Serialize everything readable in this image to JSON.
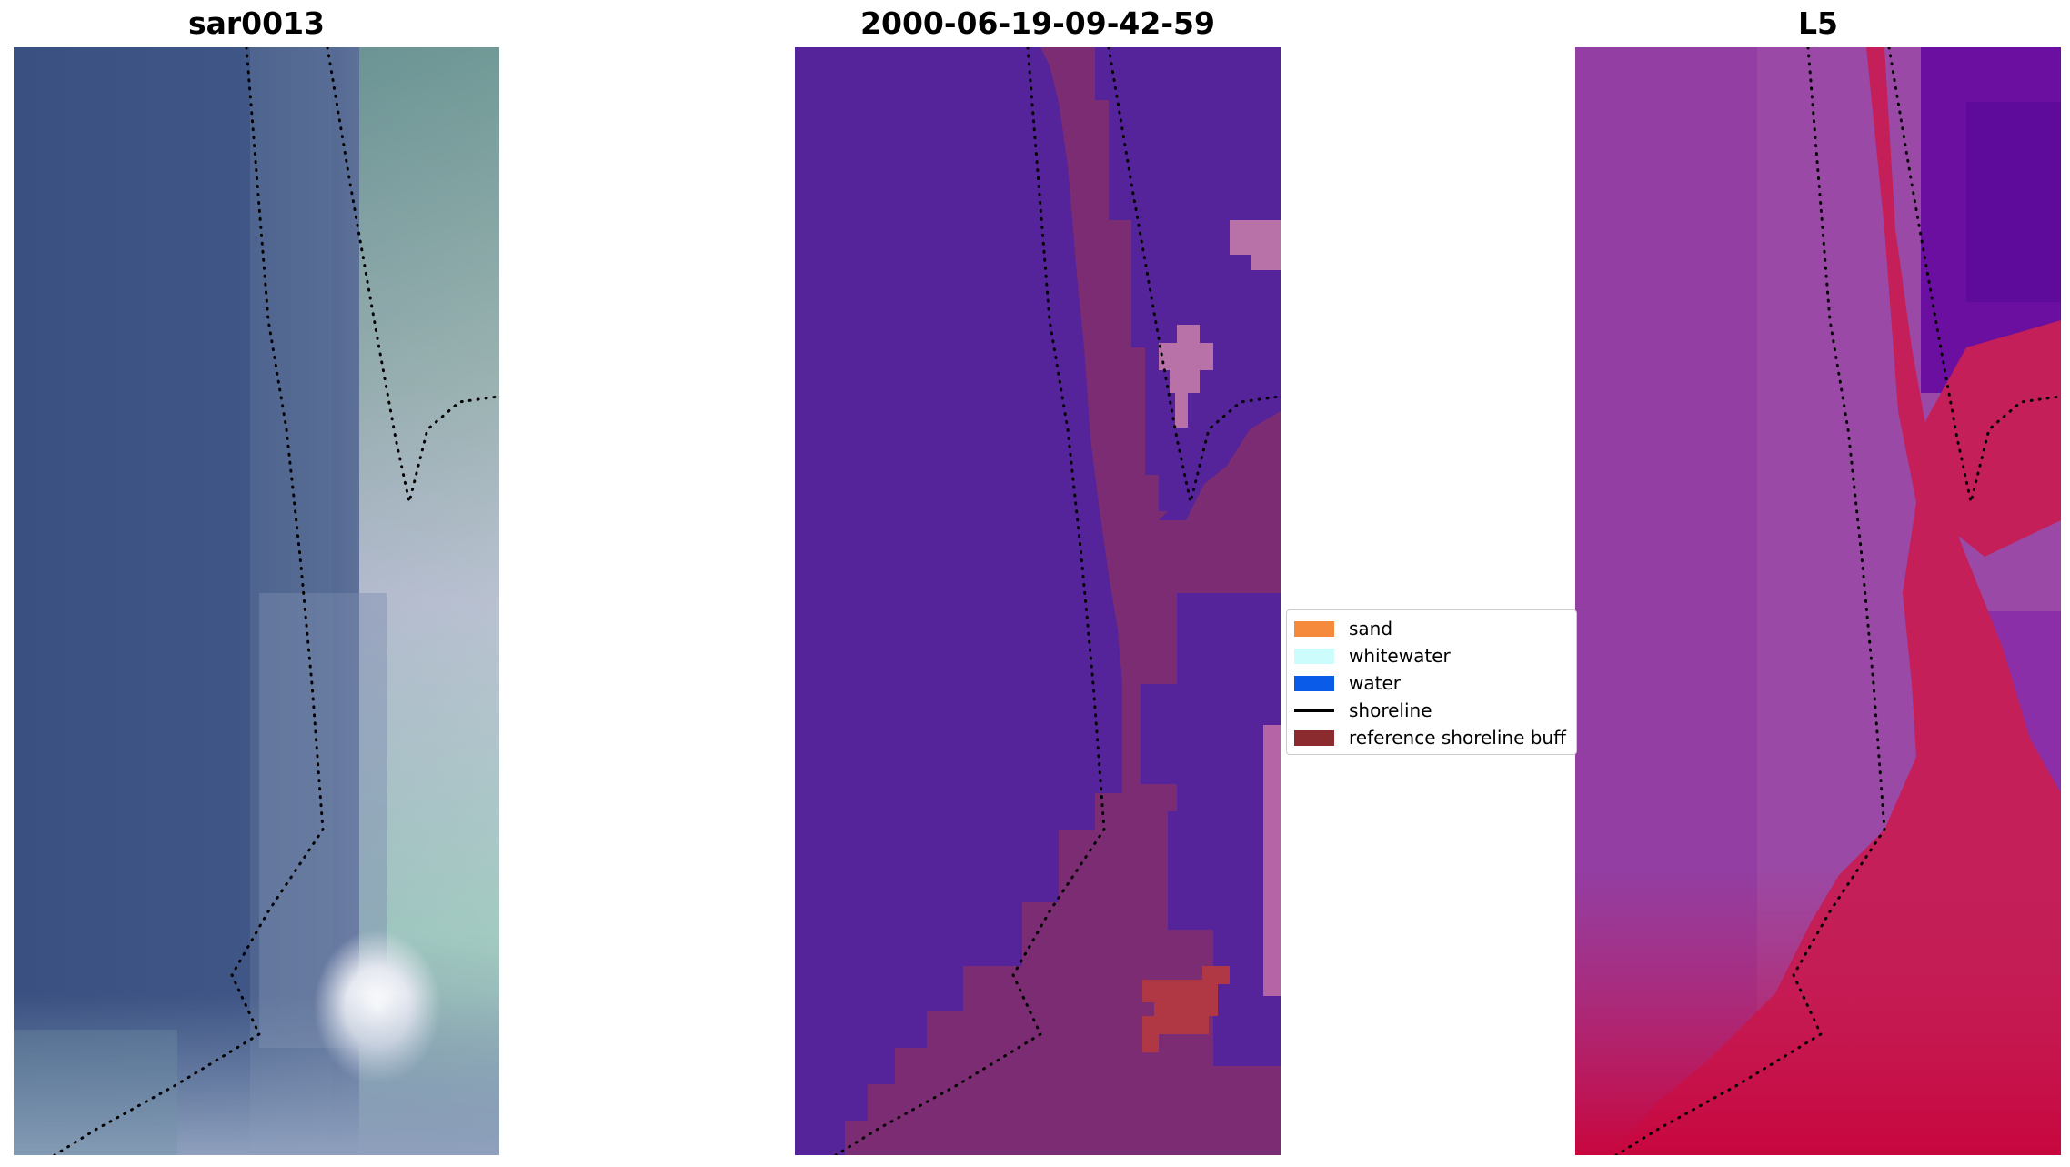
{
  "panels": {
    "left_title": "sar0013",
    "middle_title": "2000-06-19-09-42-59",
    "right_title": "L5"
  },
  "legend": {
    "items": [
      {
        "label": "sand",
        "color": "#f58a3c"
      },
      {
        "label": "whitewater",
        "color": "#ccfcfc"
      },
      {
        "label": "water",
        "color": "#0a5ce8"
      },
      {
        "label": "shoreline",
        "color": "#000000"
      },
      {
        "label": "reference shoreline buff",
        "color": "#8b2b30"
      }
    ]
  },
  "colors": {
    "classified_background": "#55239a",
    "classified_buffer": "#7b2c72",
    "classified_pink_patch": "#b872a8",
    "classified_red_patch": "#b03844",
    "l5_base": "#9a4aa6",
    "l5_dark": "#6a0fa0",
    "l5_band": "#c41f58",
    "sar_water": "#3e5585",
    "sar_land": "#8ca4a0"
  }
}
